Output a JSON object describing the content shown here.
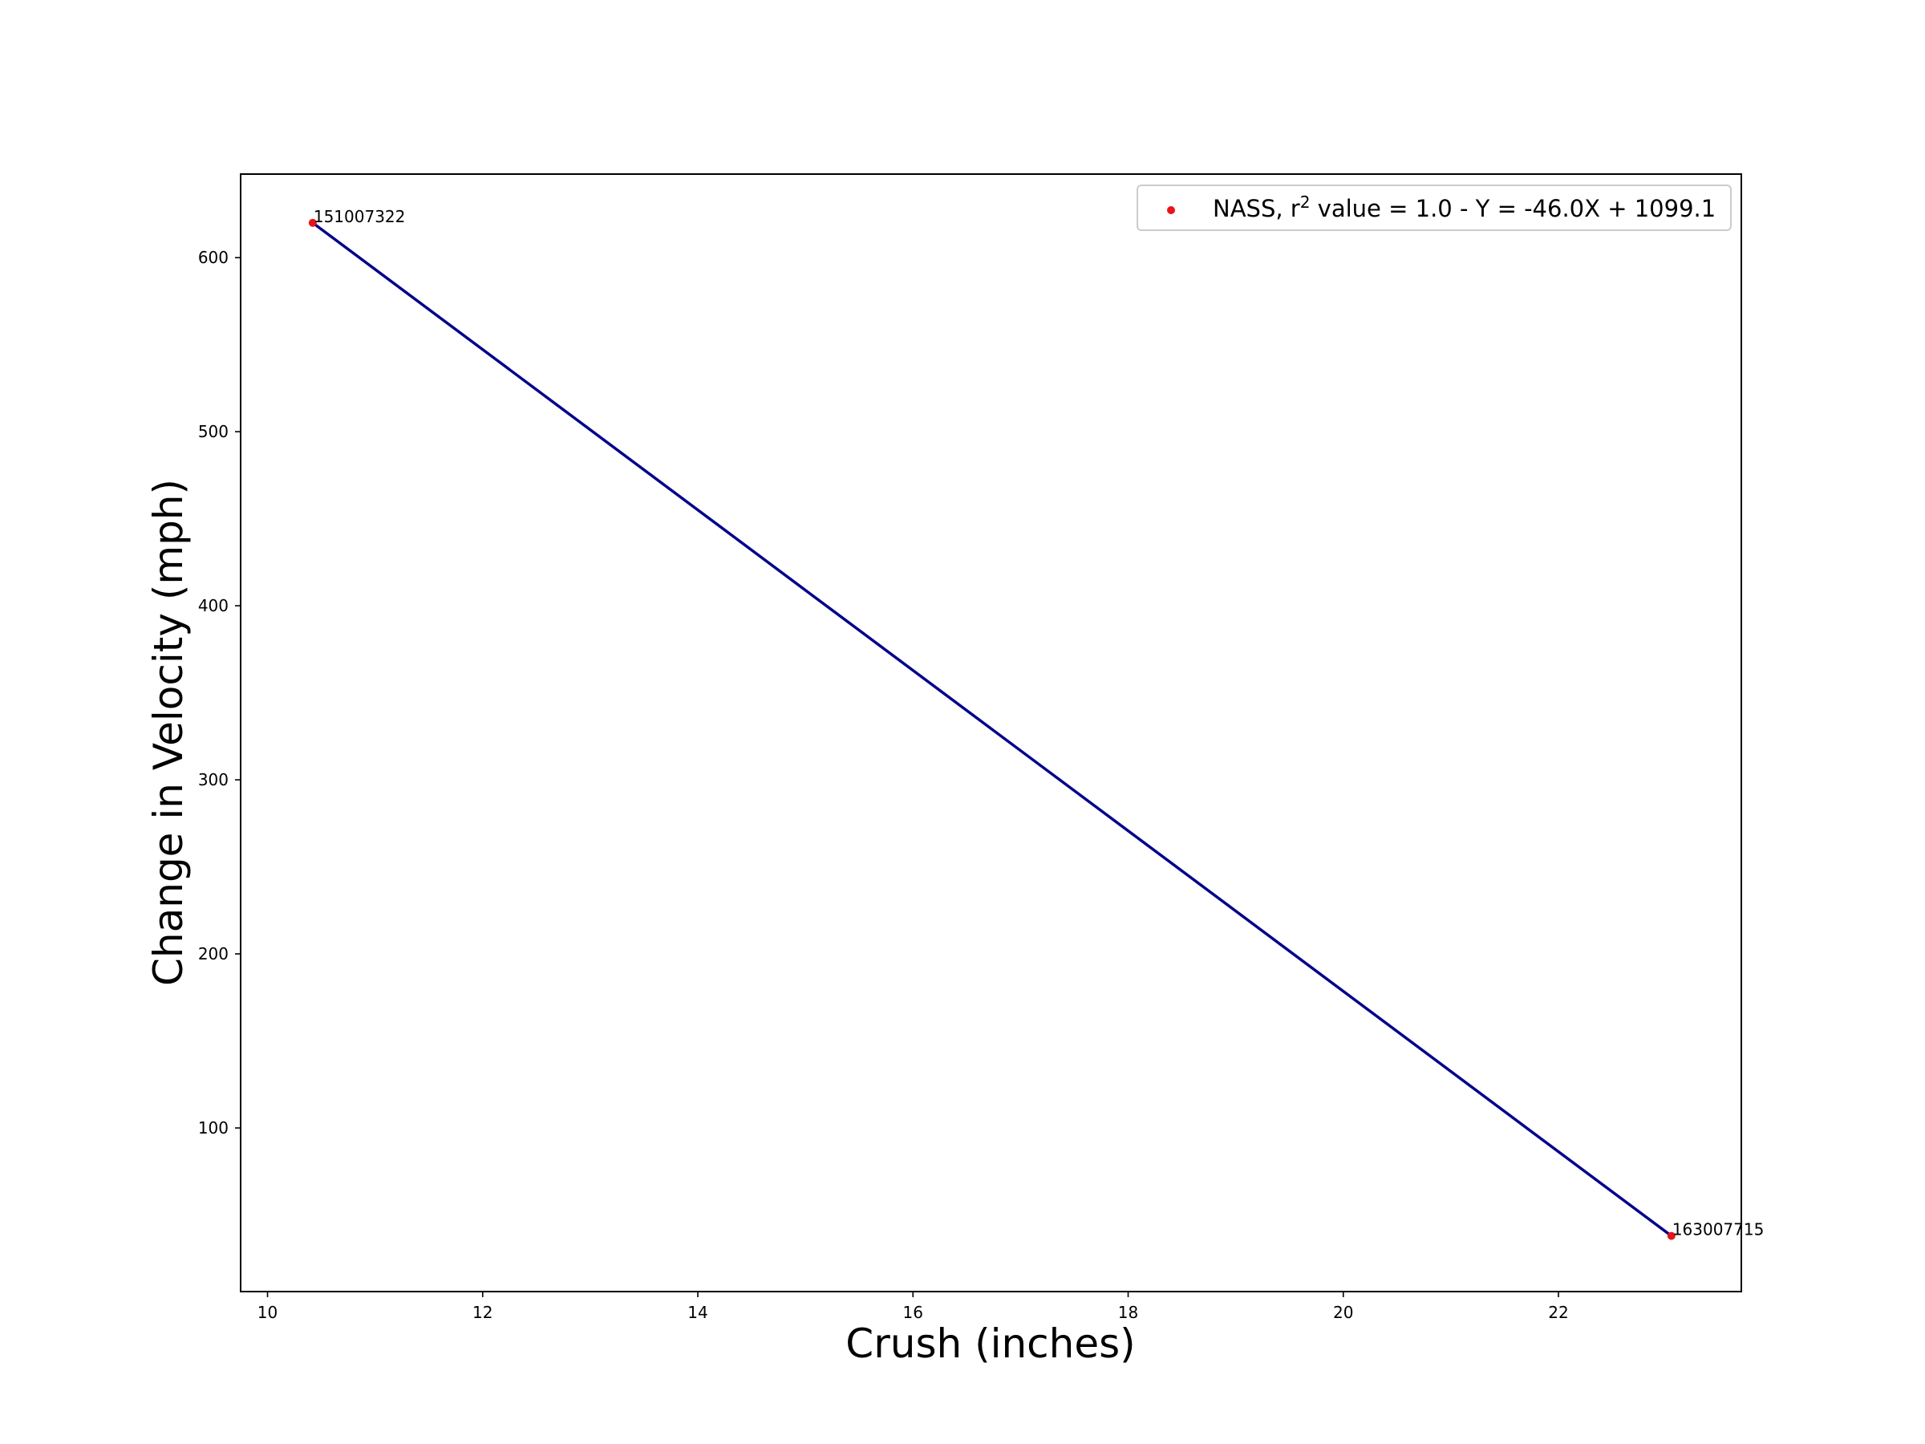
{
  "chart_data": {
    "type": "scatter",
    "title": "",
    "xlabel": "Crush (inches)",
    "ylabel": "Change in Velocity (mph)",
    "xlim": [
      9.75,
      23.7
    ],
    "ylim": [
      6,
      648
    ],
    "xticks": [
      10,
      12,
      14,
      16,
      18,
      20,
      22
    ],
    "yticks": [
      100,
      200,
      300,
      400,
      500,
      600
    ],
    "grid": false,
    "legend_position": "top-right",
    "series": [
      {
        "name": "NASS, r² value = 1.0 - Y = -46.0X + 1099.1",
        "kind": "scatter",
        "color": "#e8141a",
        "points": [
          {
            "x": 10.42,
            "y": 620.0,
            "label": "151007322"
          },
          {
            "x": 23.05,
            "y": 38.0,
            "label": "163007715"
          }
        ]
      },
      {
        "kind": "fit-line",
        "color": "#00008b",
        "slope": -46.0,
        "intercept": 1099.1,
        "x_range": [
          10.42,
          23.05
        ]
      }
    ],
    "legend": {
      "prefix": "NASS, r",
      "sup": "2",
      "suffix": " value = 1.0 - Y = -46.0X + 1099.1"
    }
  }
}
